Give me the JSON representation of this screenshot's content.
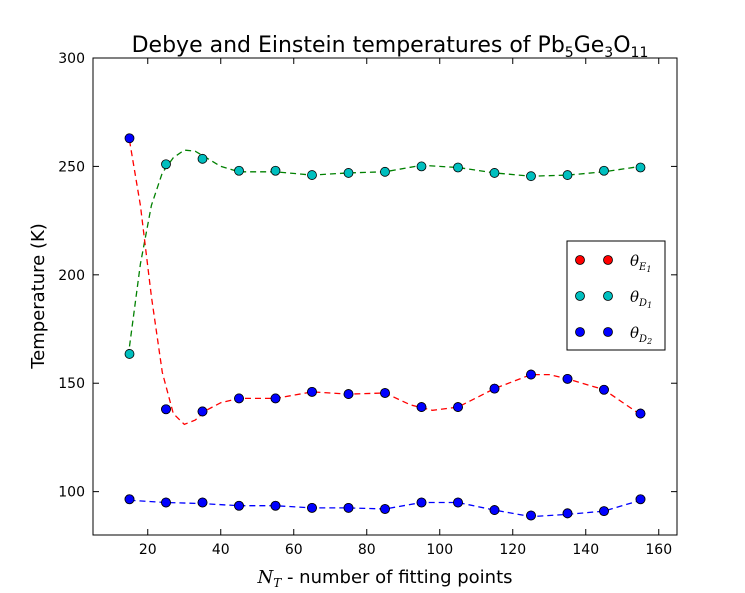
{
  "chart_data": {
    "type": "scatter",
    "title": "Debye and Einstein temperatures of Pb",
    "title_formula": [
      {
        "text": "5",
        "kind": "sub"
      },
      {
        "text": "Ge",
        "kind": "normal"
      },
      {
        "text": "3",
        "kind": "sub"
      },
      {
        "text": "O",
        "kind": "normal"
      },
      {
        "text": "11",
        "kind": "sub"
      }
    ],
    "xlabel_symbol": "N",
    "xlabel_subscript": "T",
    "xlabel_text": " - number of fitting points",
    "ylabel": "Temperature (K)",
    "xlim": [
      5,
      165
    ],
    "ylim": [
      80,
      300
    ],
    "xticks": [
      20,
      40,
      60,
      80,
      100,
      120,
      140,
      160
    ],
    "yticks": [
      100,
      150,
      200,
      250,
      300
    ],
    "legend_position": "center-right",
    "x": [
      15,
      25,
      35,
      45,
      55,
      65,
      75,
      85,
      95,
      105,
      115,
      125,
      135,
      145,
      155
    ],
    "series": [
      {
        "symbol": "θ",
        "subscript": "E",
        "subsubscript": "1",
        "color": "#ff0000",
        "points": [
          [
            15,
            96.5
          ],
          [
            25,
            95
          ],
          [
            35,
            95
          ],
          [
            45,
            93.5
          ],
          [
            55,
            93.5
          ],
          [
            65,
            92.5
          ],
          [
            75,
            92.5
          ],
          [
            85,
            92
          ],
          [
            95,
            95
          ],
          [
            105,
            95
          ],
          [
            115,
            91.5
          ],
          [
            125,
            89
          ],
          [
            135,
            90
          ],
          [
            145,
            91
          ],
          [
            155,
            96.5
          ],
          [
            25,
            138
          ],
          [
            35,
            137
          ],
          [
            45,
            143
          ],
          [
            55,
            143
          ],
          [
            65,
            146
          ],
          [
            75,
            145
          ],
          [
            85,
            145.5
          ],
          [
            95,
            139
          ],
          [
            105,
            139
          ],
          [
            115,
            147.5
          ],
          [
            125,
            154
          ],
          [
            135,
            152
          ],
          [
            145,
            147
          ],
          [
            155,
            136
          ]
        ]
      },
      {
        "symbol": "θ",
        "subscript": "D",
        "subsubscript": "1",
        "color": "#00bfbf",
        "points": [
          [
            15,
            163.5
          ],
          [
            25,
            251
          ],
          [
            35,
            253.5
          ],
          [
            45,
            248
          ],
          [
            55,
            248
          ],
          [
            65,
            246
          ],
          [
            75,
            247
          ],
          [
            85,
            247.5
          ],
          [
            95,
            250
          ],
          [
            105,
            249.5
          ],
          [
            115,
            247
          ],
          [
            125,
            245.5
          ],
          [
            135,
            246
          ],
          [
            145,
            248
          ],
          [
            155,
            249.5
          ]
        ]
      },
      {
        "symbol": "θ",
        "subscript": "D",
        "subsubscript": "2",
        "color": "#0000ff",
        "points": [
          [
            15,
            263
          ],
          [
            25,
            138
          ],
          [
            35,
            137
          ],
          [
            45,
            143
          ],
          [
            55,
            143
          ],
          [
            65,
            146
          ],
          [
            75,
            145
          ],
          [
            85,
            145.5
          ],
          [
            95,
            139
          ],
          [
            105,
            139
          ],
          [
            115,
            147.5
          ],
          [
            125,
            154
          ],
          [
            135,
            152
          ],
          [
            145,
            147
          ],
          [
            155,
            136
          ],
          [
            15,
            96.5
          ],
          [
            25,
            95
          ],
          [
            35,
            95
          ],
          [
            45,
            93.5
          ],
          [
            55,
            93.5
          ],
          [
            65,
            92.5
          ],
          [
            75,
            92.5
          ],
          [
            85,
            92
          ],
          [
            95,
            95
          ],
          [
            105,
            95
          ],
          [
            115,
            91.5
          ],
          [
            125,
            89
          ],
          [
            135,
            90
          ],
          [
            145,
            91
          ],
          [
            155,
            96.5
          ]
        ]
      }
    ],
    "fits": [
      {
        "color": "#008000",
        "dash": "6,4",
        "points": [
          [
            15,
            167
          ],
          [
            18,
            205
          ],
          [
            21,
            232
          ],
          [
            24,
            247
          ],
          [
            27,
            254
          ],
          [
            30,
            257.5
          ],
          [
            33,
            257
          ],
          [
            36,
            254
          ],
          [
            40,
            250
          ],
          [
            45,
            247.5
          ],
          [
            55,
            247.5
          ],
          [
            65,
            246
          ],
          [
            75,
            247
          ],
          [
            85,
            247.5
          ],
          [
            95,
            250.5
          ],
          [
            105,
            249.5
          ],
          [
            115,
            247
          ],
          [
            125,
            245.5
          ],
          [
            135,
            246
          ],
          [
            145,
            247.5
          ],
          [
            155,
            250
          ]
        ]
      },
      {
        "color": "#ff0000",
        "dash": "6,4",
        "points": [
          [
            15,
            262
          ],
          [
            18,
            232
          ],
          [
            21,
            190
          ],
          [
            24,
            155
          ],
          [
            27,
            136
          ],
          [
            30,
            131
          ],
          [
            33,
            133
          ],
          [
            36,
            137.5
          ],
          [
            40,
            141
          ],
          [
            45,
            143
          ],
          [
            55,
            143
          ],
          [
            65,
            146
          ],
          [
            75,
            145
          ],
          [
            85,
            145.5
          ],
          [
            92,
            140
          ],
          [
            98,
            137.5
          ],
          [
            105,
            139
          ],
          [
            115,
            147.5
          ],
          [
            125,
            154
          ],
          [
            130,
            154
          ],
          [
            135,
            152
          ],
          [
            145,
            147
          ],
          [
            155,
            135.5
          ]
        ]
      },
      {
        "color": "#0000ff",
        "dash": "6,4",
        "points": [
          [
            15,
            96
          ],
          [
            25,
            95
          ],
          [
            35,
            94.5
          ],
          [
            45,
            93.5
          ],
          [
            55,
            93.5
          ],
          [
            65,
            92.5
          ],
          [
            75,
            92.5
          ],
          [
            85,
            92
          ],
          [
            95,
            95
          ],
          [
            105,
            95
          ],
          [
            115,
            91.5
          ],
          [
            125,
            88.5
          ],
          [
            135,
            89.5
          ],
          [
            145,
            91
          ],
          [
            155,
            96
          ]
        ]
      }
    ]
  }
}
